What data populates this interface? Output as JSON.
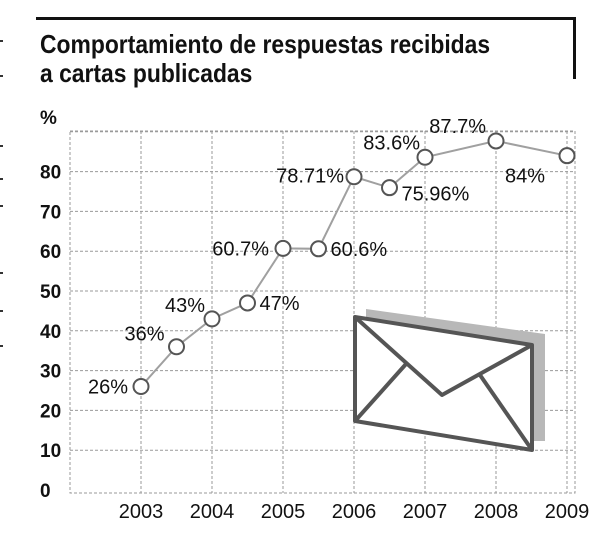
{
  "title_lines": [
    "Comportamiento de respuestas recibidas",
    "a cartas publicadas"
  ],
  "icon": "envelope-icon",
  "colors": {
    "grid": "#9a9a9a",
    "line": "#a0a0a0",
    "marker_fill": "#ffffff",
    "marker_stroke": "#555555",
    "text": "#111111",
    "envelope_shadow": "#b8b8b8",
    "envelope_stroke": "#555555"
  },
  "chart_data": {
    "type": "line",
    "title": "Comportamiento de respuestas recibidas a cartas publicadas",
    "ylabel": "%",
    "xlabel": "",
    "ylim": [
      0,
      90
    ],
    "yticks": [
      0,
      10,
      20,
      30,
      40,
      50,
      60,
      70,
      80
    ],
    "xticks": [
      "2003",
      "2004",
      "2005",
      "2006",
      "2007",
      "2008",
      "2009"
    ],
    "grid": true,
    "points": [
      {
        "x": 2003.0,
        "y": 26,
        "label": "26%"
      },
      {
        "x": 2003.5,
        "y": 36,
        "label": "36%"
      },
      {
        "x": 2004.0,
        "y": 43,
        "label": "43%"
      },
      {
        "x": 2004.5,
        "y": 47,
        "label": "47%"
      },
      {
        "x": 2005.0,
        "y": 60.7,
        "label": "60.7%"
      },
      {
        "x": 2005.5,
        "y": 60.6,
        "label": "60.6%"
      },
      {
        "x": 2006.0,
        "y": 78.71,
        "label": "78.71%"
      },
      {
        "x": 2006.5,
        "y": 75.96,
        "label": "75.96%"
      },
      {
        "x": 2007.0,
        "y": 83.6,
        "label": "83.6%"
      },
      {
        "x": 2008.0,
        "y": 87.7,
        "label": "87.7%"
      },
      {
        "x": 2009.0,
        "y": 84,
        "label": "84%"
      }
    ]
  }
}
